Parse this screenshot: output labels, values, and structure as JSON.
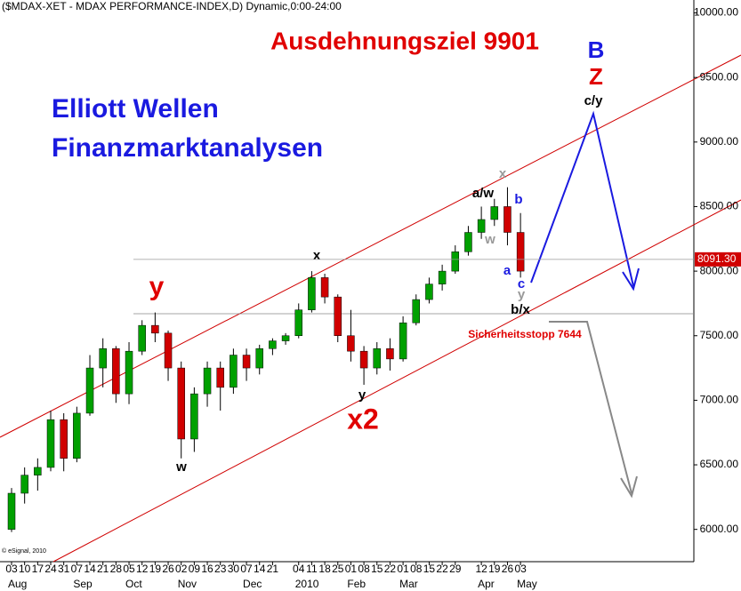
{
  "chart_data": {
    "type": "candlestick",
    "title": "($MDAX-XET - MDAX PERFORMANCE-INDEX,D) Dynamic,0:00-24:00",
    "credit": "© eSignal, 2010",
    "categories": [
      "03",
      "10",
      "17",
      "24",
      "31",
      "07",
      "14",
      "21",
      "28",
      "05",
      "12",
      "19",
      "26",
      "02",
      "09",
      "16",
      "23",
      "30",
      "07",
      "14",
      "21",
      null,
      "04",
      "11",
      "18",
      "25",
      "01",
      "08",
      "15",
      "22",
      "01",
      "08",
      "15",
      "22",
      "29",
      null,
      "12",
      "19",
      "26",
      "03"
    ],
    "months": [
      "Aug",
      null,
      null,
      null,
      null,
      "Sep",
      null,
      null,
      null,
      "Oct",
      null,
      null,
      null,
      "Nov",
      null,
      null,
      null,
      null,
      "Dec",
      null,
      null,
      null,
      "2010",
      null,
      null,
      null,
      "Feb",
      null,
      null,
      null,
      "Mar",
      null,
      null,
      null,
      null,
      null,
      "Apr",
      null,
      null,
      "May"
    ],
    "open": [
      6000,
      6280,
      6420,
      6480,
      6850,
      6550,
      6900,
      7250,
      7400,
      7050,
      7380,
      7580,
      7520,
      7250,
      6700,
      7050,
      7250,
      7100,
      7350,
      7250,
      7400,
      7460,
      7500,
      7700,
      7950,
      7800,
      7500,
      7380,
      7250,
      7400,
      7320,
      7600,
      7780,
      7900,
      8000,
      8150,
      8300,
      8400,
      8500,
      8300
    ],
    "high": [
      6320,
      6480,
      6550,
      6920,
      6900,
      6950,
      7350,
      7480,
      7420,
      7450,
      7620,
      7680,
      7540,
      7300,
      7100,
      7300,
      7300,
      7400,
      7400,
      7430,
      7480,
      7520,
      7750,
      8000,
      7980,
      7820,
      7700,
      7420,
      7450,
      7480,
      7650,
      7820,
      7950,
      8050,
      8200,
      8350,
      8500,
      8560,
      8650,
      8450
    ],
    "low": [
      5980,
      6200,
      6300,
      6450,
      6450,
      6520,
      6880,
      7100,
      6980,
      6970,
      7350,
      7450,
      7150,
      6550,
      6600,
      6950,
      6920,
      7050,
      7150,
      7200,
      7350,
      7430,
      7480,
      7680,
      7750,
      7450,
      7300,
      7120,
      7200,
      7230,
      7300,
      7580,
      7750,
      7850,
      7980,
      8120,
      8250,
      8350,
      8200,
      7950
    ],
    "close": [
      6280,
      6420,
      6480,
      6850,
      6550,
      6900,
      7250,
      7400,
      7050,
      7380,
      7580,
      7520,
      7250,
      6700,
      7050,
      7250,
      7100,
      7350,
      7250,
      7400,
      7460,
      7500,
      7700,
      7950,
      7800,
      7500,
      7380,
      7250,
      7400,
      7320,
      7600,
      7780,
      7900,
      8000,
      8150,
      8300,
      8400,
      8500,
      8300,
      8000
    ],
    "up_color": "#00a000",
    "down_color": "#d00000",
    "ylim": [
      5750,
      10100
    ],
    "yticks": [
      {
        "value": 6000,
        "label": "6000.00"
      },
      {
        "value": 6500,
        "label": "6500.00"
      },
      {
        "value": 7000,
        "label": "7000.00"
      },
      {
        "value": 7500,
        "label": "7500.00"
      },
      {
        "value": 8000,
        "label": "8000.00"
      },
      {
        "value": 8500,
        "label": "8500.00"
      },
      {
        "value": 9000,
        "label": "9000.00"
      },
      {
        "value": 9500,
        "label": "9500.00"
      },
      {
        "value": 10000,
        "label": "10000.00"
      }
    ],
    "last_price": {
      "value": 8091.3,
      "label": "8091.30"
    },
    "annotations": [
      "Ausdehnungsziel 9901",
      "B",
      "Z",
      "Elliott Wellen",
      "Finanzmarktanalysen",
      "c/y",
      "x",
      "a/w",
      "b",
      "w",
      "a",
      "c",
      "y",
      "b/x",
      "x",
      "y",
      "w",
      "y",
      "x2",
      "Sicherheitsstopp 7644"
    ]
  }
}
